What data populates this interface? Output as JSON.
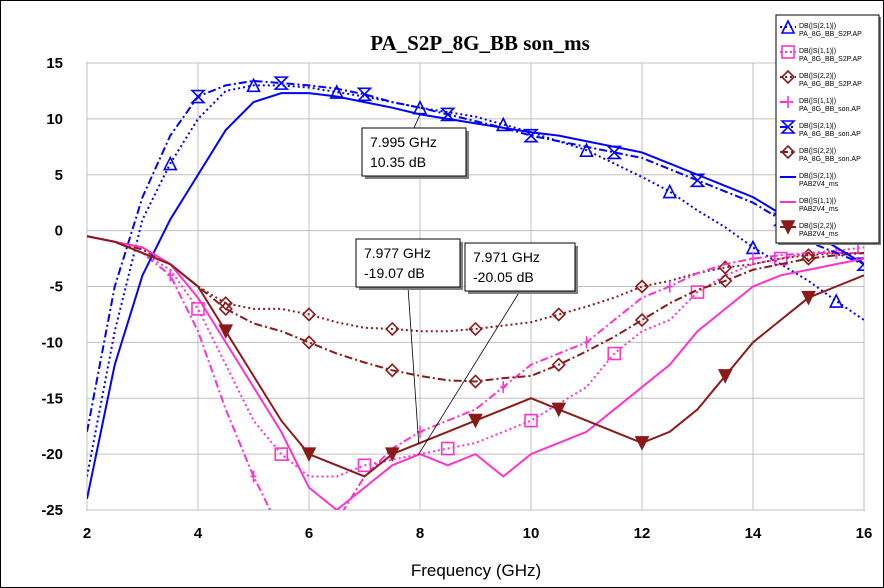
{
  "chart_data": {
    "type": "line",
    "title": "PA_S2P_8G_BB son_ms",
    "xlabel": "Frequency (GHz)",
    "ylabel": "",
    "xlim": [
      2,
      16
    ],
    "ylim": [
      -25,
      15
    ],
    "xticks": [
      2,
      4,
      6,
      8,
      10,
      12,
      14,
      16
    ],
    "yticks": [
      15,
      10,
      5,
      0,
      -5,
      -10,
      -15,
      -20,
      -25
    ],
    "grid": true,
    "legend_position": "top-right",
    "series": [
      {
        "name": "DB(|S(2,1)|)\nPA_8G_BB_S2P.AP",
        "color": "#0000ff",
        "dash": "2,3",
        "marker": "triangle",
        "x": [
          2,
          2.5,
          3,
          3.5,
          4,
          4.5,
          5,
          5.5,
          6,
          6.5,
          7,
          7.5,
          8,
          8.5,
          9,
          9.5,
          10,
          10.5,
          11,
          11.5,
          12,
          12.5,
          13,
          13.5,
          14,
          14.5,
          15,
          15.5,
          16
        ],
        "values": [
          -22,
          -9,
          1,
          6,
          10,
          12.5,
          13,
          13,
          12.8,
          12.4,
          12,
          11.5,
          11,
          10.6,
          10.2,
          9.5,
          8.8,
          8,
          7.2,
          6,
          4.8,
          3.5,
          1.8,
          0.3,
          -1.5,
          -3,
          -4.5,
          -6.3,
          -8
        ]
      },
      {
        "name": "DB(|S(1,1)|)\nPA_8G_BB_S2P.AP",
        "color": "#ff33cc",
        "dash": "2,3",
        "marker": "square",
        "x": [
          2,
          2.5,
          3,
          3.5,
          4,
          4.5,
          5,
          5.5,
          6,
          6.5,
          7,
          7.5,
          8,
          8.5,
          9,
          9.5,
          10,
          10.5,
          11,
          11.5,
          12,
          12.5,
          13,
          13.5,
          14,
          14.5,
          15,
          15.5,
          16
        ],
        "values": [
          -0.5,
          -1,
          -2,
          -3.5,
          -7,
          -12,
          -17,
          -20,
          -22,
          -22,
          -21,
          -20.5,
          -20,
          -19.5,
          -19,
          -18,
          -17,
          -15.5,
          -14,
          -11,
          -9,
          -8,
          -5.5,
          -4,
          -3,
          -2.5,
          -2,
          -1.8,
          -1.5
        ]
      },
      {
        "name": "DB(|S(2,2)|)\nPA_8G_BB_S2P.AP",
        "color": "#8b1a1a",
        "dash": "2,3",
        "marker": "diamond",
        "x": [
          2,
          2.5,
          3,
          3.5,
          4,
          4.5,
          5,
          5.5,
          6,
          6.5,
          7,
          7.5,
          8,
          8.5,
          9,
          9.5,
          10,
          10.5,
          11,
          11.5,
          12,
          12.5,
          13,
          13.5,
          14,
          14.5,
          15,
          15.5,
          16
        ],
        "values": [
          -0.5,
          -1,
          -1.5,
          -3,
          -5,
          -6.5,
          -7,
          -7,
          -7.5,
          -8.2,
          -8.7,
          -8.8,
          -9,
          -9,
          -8.8,
          -8.5,
          -8.2,
          -7.5,
          -6.8,
          -6,
          -5,
          -4.5,
          -3.8,
          -3.3,
          -3,
          -2.5,
          -2.2,
          -2,
          -2
        ]
      },
      {
        "name": "DB(|S(1,1)|)\nPA_8G_BB_son.AP",
        "color": "#ff33cc",
        "dash": "8,3,2,3",
        "marker": "plus",
        "x": [
          2,
          2.5,
          3,
          3.5,
          4,
          4.5,
          5,
          5.5,
          6,
          6.5,
          7,
          7.5,
          8,
          8.5,
          9,
          9.5,
          10,
          10.5,
          11,
          11.5,
          12,
          12.5,
          13,
          13.5,
          14,
          14.5,
          15,
          15.5,
          16
        ],
        "values": [
          -0.5,
          -1,
          -2,
          -4,
          -9,
          -16,
          -22,
          -27,
          -30,
          -26,
          -22,
          -19.5,
          -18,
          -17,
          -16,
          -14,
          -12,
          -11,
          -10,
          -8,
          -6,
          -5,
          -3.8,
          -3,
          -2.5,
          -2.2,
          -2,
          -2,
          -2
        ]
      },
      {
        "name": "DB(|S(2,1)|)\nPA_8G_BB_son.AP",
        "color": "#0000ff",
        "dash": "8,3,2,3",
        "marker": "hourglass",
        "x": [
          2,
          2.5,
          3,
          3.5,
          4,
          4.5,
          5,
          5.5,
          6,
          6.5,
          7,
          7.5,
          8,
          8.5,
          9,
          9.5,
          10,
          10.5,
          11,
          11.5,
          12,
          12.5,
          13,
          13.5,
          14,
          14.5,
          15,
          15.5,
          16
        ],
        "values": [
          -18,
          -5,
          3,
          8.5,
          12,
          13,
          13.4,
          13.2,
          13,
          12.7,
          12.2,
          11.5,
          11,
          10.4,
          9.8,
          9.2,
          8.5,
          8,
          7.5,
          7,
          6.5,
          5.5,
          4.5,
          3.5,
          2.5,
          1,
          -1,
          -2,
          -3
        ]
      },
      {
        "name": "DB(|S(2,2)|)\nPA_8G_BB_son.AP",
        "color": "#8b1a1a",
        "dash": "8,3,2,3",
        "marker": "diamond",
        "x": [
          2,
          2.5,
          3,
          3.5,
          4,
          4.5,
          5,
          5.5,
          6,
          6.5,
          7,
          7.5,
          8,
          8.5,
          9,
          9.5,
          10,
          10.5,
          11,
          11.5,
          12,
          12.5,
          13,
          13.5,
          14,
          14.5,
          15,
          15.5,
          16
        ],
        "values": [
          -0.5,
          -1,
          -1.7,
          -3,
          -5,
          -7,
          -8.3,
          -9,
          -10,
          -11,
          -11.8,
          -12.5,
          -13,
          -13.4,
          -13.5,
          -13.2,
          -13,
          -12,
          -10.8,
          -9.5,
          -8,
          -6.5,
          -5.3,
          -4.5,
          -3.5,
          -3,
          -2.5,
          -2.2,
          -2
        ]
      },
      {
        "name": "DB(|S(2,1)|)\nPAB2V4_ms",
        "color": "#0000ff",
        "dash": "",
        "marker": "none",
        "x": [
          2,
          2.5,
          3,
          3.5,
          4,
          4.5,
          5,
          5.5,
          6,
          6.5,
          7,
          7.5,
          8,
          8.5,
          9,
          9.5,
          10,
          10.5,
          11,
          11.5,
          12,
          12.5,
          13,
          13.5,
          14,
          14.5,
          15,
          15.5,
          16
        ],
        "values": [
          -24,
          -12,
          -4,
          1,
          5,
          9,
          11.5,
          12.3,
          12.3,
          12,
          11.5,
          11,
          10.4,
          10,
          9.6,
          9.2,
          8.8,
          8.5,
          8,
          7.5,
          7,
          6,
          5,
          4,
          3,
          1.5,
          0,
          -1.5,
          -3
        ]
      },
      {
        "name": "DB(|S(1,1)|)\nPAB2V4_ms",
        "color": "#ff33cc",
        "dash": "",
        "marker": "none",
        "x": [
          2,
          2.5,
          3,
          3.5,
          4,
          4.5,
          5,
          5.5,
          6,
          6.5,
          7,
          7.5,
          8,
          8.5,
          9,
          9.5,
          10,
          10.5,
          11,
          11.5,
          12,
          12.5,
          13,
          13.5,
          14,
          14.5,
          15,
          15.5,
          16
        ],
        "values": [
          -0.5,
          -1,
          -1.5,
          -3,
          -6,
          -10,
          -14,
          -18,
          -23,
          -25,
          -23,
          -21,
          -20,
          -21,
          -20,
          -22,
          -20,
          -19,
          -18,
          -16,
          -14,
          -12,
          -9,
          -7,
          -5,
          -4,
          -3.5,
          -3,
          -2.5
        ]
      },
      {
        "name": "DB(|S(2,2)|)\nPAB2V4_ms",
        "color": "#8b1a1a",
        "dash": "",
        "marker": "triangle-down",
        "x": [
          2,
          2.5,
          3,
          3.5,
          4,
          4.5,
          5,
          5.5,
          6,
          6.5,
          7,
          7.5,
          8,
          8.5,
          9,
          9.5,
          10,
          10.5,
          11,
          11.5,
          12,
          12.5,
          13,
          13.5,
          14,
          14.5,
          15,
          15.5,
          16
        ],
        "values": [
          -0.5,
          -1,
          -2,
          -3,
          -5,
          -9,
          -13,
          -17,
          -20,
          -21,
          -22,
          -20,
          -19,
          -18,
          -17,
          -16,
          -15,
          -16,
          -17,
          -18,
          -19,
          -18,
          -16,
          -13,
          -10,
          -8,
          -6,
          -5,
          -4
        ]
      }
    ],
    "annotations": [
      {
        "text1": "7.995 GHz",
        "text2": "10.35 dB",
        "point_x": 7.995,
        "point_y": 10.35
      },
      {
        "text1": "7.977 GHz",
        "text2": "-19.07 dB",
        "point_x": 7.977,
        "point_y": -19.07
      },
      {
        "text1": "7.971 GHz",
        "text2": "-20.05 dB",
        "point_x": 7.971,
        "point_y": -20.05
      }
    ]
  }
}
